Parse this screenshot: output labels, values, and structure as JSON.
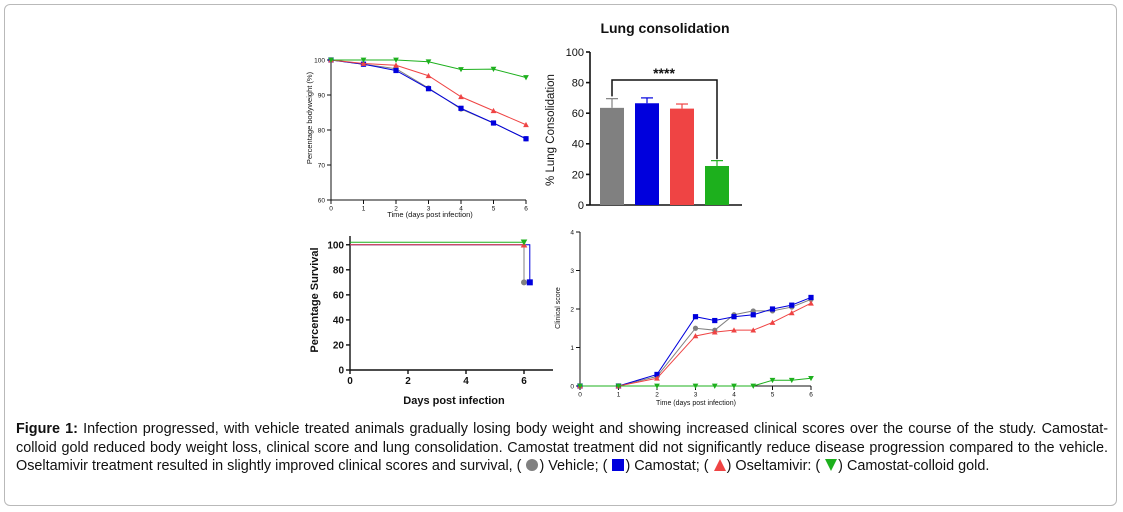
{
  "colors": {
    "vehicle": "#808080",
    "camostat": "#0000dd",
    "oseltamivir": "#ef4444",
    "cc_gold": "#1db01d"
  },
  "panels": {
    "weight": {
      "ylabel": "Percentage bodyweight (%)",
      "xlabel": "Time (days post infection)",
      "yticks": [
        "60",
        "70",
        "80",
        "90",
        "100"
      ],
      "xticks": [
        "0",
        "1",
        "2",
        "3",
        "4",
        "5",
        "6"
      ]
    },
    "lung": {
      "title": "Lung consolidation",
      "ylabel": "% Lung Consolidation",
      "yticks": [
        "0",
        "20",
        "40",
        "60",
        "80",
        "100"
      ],
      "significance": "****"
    },
    "survival": {
      "ylabel": "Percentage Survival",
      "xlabel": "Days post infection",
      "yticks": [
        "0",
        "20",
        "40",
        "60",
        "80",
        "100"
      ],
      "xticks": [
        "0",
        "2",
        "4",
        "6"
      ]
    },
    "clinical": {
      "ylabel": "Clinical score",
      "xlabel": "Time (days post infection)",
      "yticks": [
        "0",
        "1",
        "2",
        "3",
        "4"
      ],
      "xticks": [
        "0",
        "1",
        "2",
        "3",
        "4",
        "5",
        "6"
      ]
    }
  },
  "chart_data": [
    {
      "type": "line",
      "ylabel": "Percentage bodyweight (%)",
      "xlabel": "Time (days post infection)",
      "x": [
        0,
        1,
        2,
        3,
        4,
        5,
        6
      ],
      "ylim": [
        60,
        100
      ],
      "series": [
        {
          "key": "vehicle",
          "marker": "circle",
          "values": [
            100,
            98.8,
            97.5,
            92,
            86,
            82,
            77.5
          ]
        },
        {
          "key": "camostat",
          "marker": "square",
          "values": [
            100,
            98.8,
            97,
            91.8,
            86.2,
            82,
            77.5
          ]
        },
        {
          "key": "oseltamivir",
          "marker": "triangle-up",
          "values": [
            100,
            99,
            98.5,
            95.5,
            89.5,
            85.5,
            81.5
          ]
        },
        {
          "key": "cc_gold",
          "marker": "triangle-down",
          "values": [
            100,
            100,
            100,
            99.5,
            97.3,
            97.4,
            95
          ]
        }
      ]
    },
    {
      "type": "bar",
      "title": "Lung consolidation",
      "ylabel": "% Lung Consolidation",
      "ylim": [
        0,
        100
      ],
      "bars": [
        {
          "key": "vehicle",
          "value": 63.5,
          "error": 6
        },
        {
          "key": "camostat",
          "value": 66.5,
          "error": 3.5
        },
        {
          "key": "oseltamivir",
          "value": 63,
          "error": 3
        },
        {
          "key": "cc_gold",
          "value": 25.5,
          "error": 3.5
        }
      ],
      "annotation": "****"
    },
    {
      "type": "line",
      "ylabel": "Percentage Survival",
      "xlabel": "Days post infection",
      "ylim": [
        0,
        100
      ],
      "xlim": [
        0,
        7
      ],
      "series": [
        {
          "key": "vehicle",
          "marker": "circle",
          "x": [
            0,
            6,
            6
          ],
          "values": [
            100,
            100,
            70
          ]
        },
        {
          "key": "camostat",
          "marker": "square",
          "x": [
            0,
            6.2,
            6.2
          ],
          "values": [
            100,
            100,
            70
          ]
        },
        {
          "key": "oseltamivir",
          "marker": "triangle-up",
          "x": [
            0,
            6,
            6
          ],
          "values": [
            100,
            100,
            100
          ]
        },
        {
          "key": "cc_gold",
          "marker": "triangle-down",
          "x": [
            0,
            6,
            6
          ],
          "values": [
            102,
            102,
            102
          ]
        }
      ]
    },
    {
      "type": "line",
      "ylabel": "Clinical score",
      "xlabel": "Time (days post infection)",
      "ylim": [
        0,
        4
      ],
      "x": [
        0,
        1,
        2,
        3,
        3.5,
        4,
        4.5,
        5,
        5.5,
        6
      ],
      "series": [
        {
          "key": "vehicle",
          "marker": "circle",
          "values": [
            0,
            0,
            0.25,
            1.5,
            1.45,
            1.85,
            1.95,
            1.95,
            2.05,
            2.25
          ]
        },
        {
          "key": "camostat",
          "marker": "square",
          "values": [
            0,
            0,
            0.3,
            1.8,
            1.7,
            1.8,
            1.85,
            2.0,
            2.1,
            2.3
          ]
        },
        {
          "key": "oseltamivir",
          "marker": "triangle-up",
          "values": [
            0,
            0,
            0.2,
            1.3,
            1.4,
            1.45,
            1.45,
            1.65,
            1.9,
            2.15
          ]
        },
        {
          "key": "cc_gold",
          "marker": "triangle-down",
          "values": [
            0,
            0,
            0,
            0,
            0,
            0,
            0,
            0.15,
            0.15,
            0.2
          ]
        }
      ]
    }
  ],
  "caption": {
    "label": "Figure 1:",
    "text1": " Infection progressed, with vehicle treated animals gradually losing body weight and showing increased clinical scores over the course of the study. Camostat-colloid gold reduced body weight loss, clinical score and lung consolidation. Camostat treatment did not significantly reduce disease progression compared to the vehicle. Oseltamivir treatment resulted in slightly improved clinical scores and survival, ( ",
    "vehicle": ") Vehicle; ( ",
    "camostat": ") Camostat; ( ",
    "oseltamivir": ") Oseltamivir: ( ",
    "cc_gold": ") Camostat-colloid gold."
  }
}
